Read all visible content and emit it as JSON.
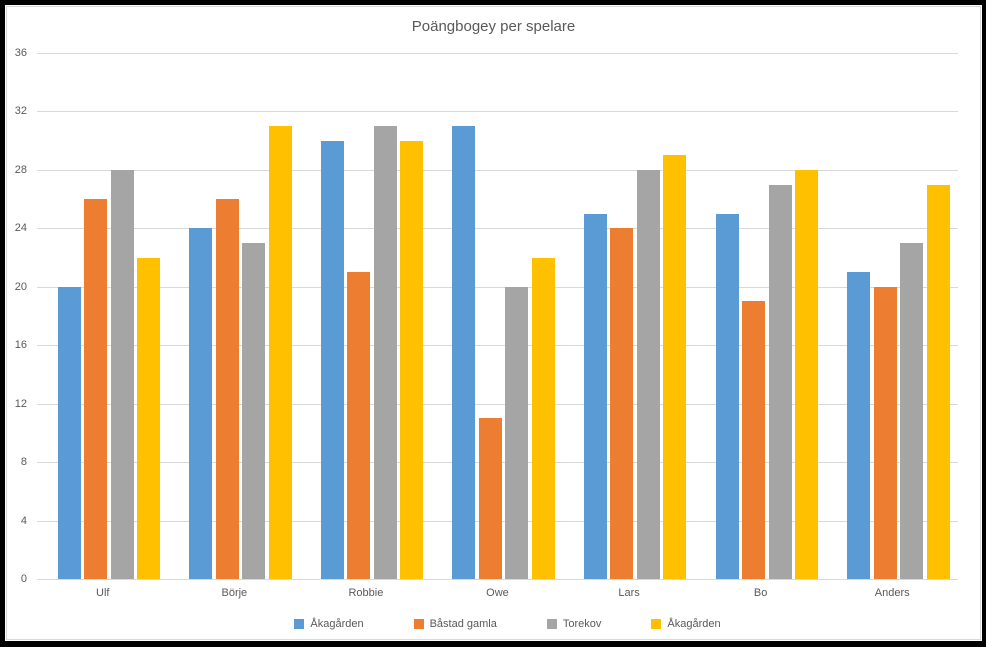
{
  "chart_data": {
    "type": "bar",
    "title": "Poängbogey per spelare",
    "categories": [
      "Ulf",
      "Börje",
      "Robbie",
      "Owe",
      "Lars",
      "Bo",
      "Anders"
    ],
    "series": [
      {
        "name": "Åkagården",
        "color": "#5B9BD5",
        "values": [
          20,
          24,
          30,
          31,
          25,
          25,
          21
        ]
      },
      {
        "name": "Båstad gamla",
        "color": "#ED7D31",
        "values": [
          26,
          26,
          21,
          11,
          24,
          19,
          20
        ]
      },
      {
        "name": "Torekov",
        "color": "#A5A5A5",
        "values": [
          28,
          23,
          31,
          20,
          28,
          27,
          23
        ]
      },
      {
        "name": "Åkagården",
        "color": "#FFC000",
        "values": [
          22,
          31,
          30,
          22,
          29,
          28,
          27
        ]
      }
    ],
    "ylim": [
      0,
      36
    ],
    "yticks": [
      36,
      32,
      28,
      24,
      20,
      16,
      12,
      8,
      4,
      0
    ],
    "xlabel": "",
    "ylabel": "",
    "grid": true,
    "legend_position": "bottom",
    "colors": {
      "text": "#595959",
      "gridline": "#D9D9D9",
      "axis_line": "#D9D9D9",
      "plot_background": "#FFFFFF",
      "outer_frame": "#000000"
    }
  }
}
